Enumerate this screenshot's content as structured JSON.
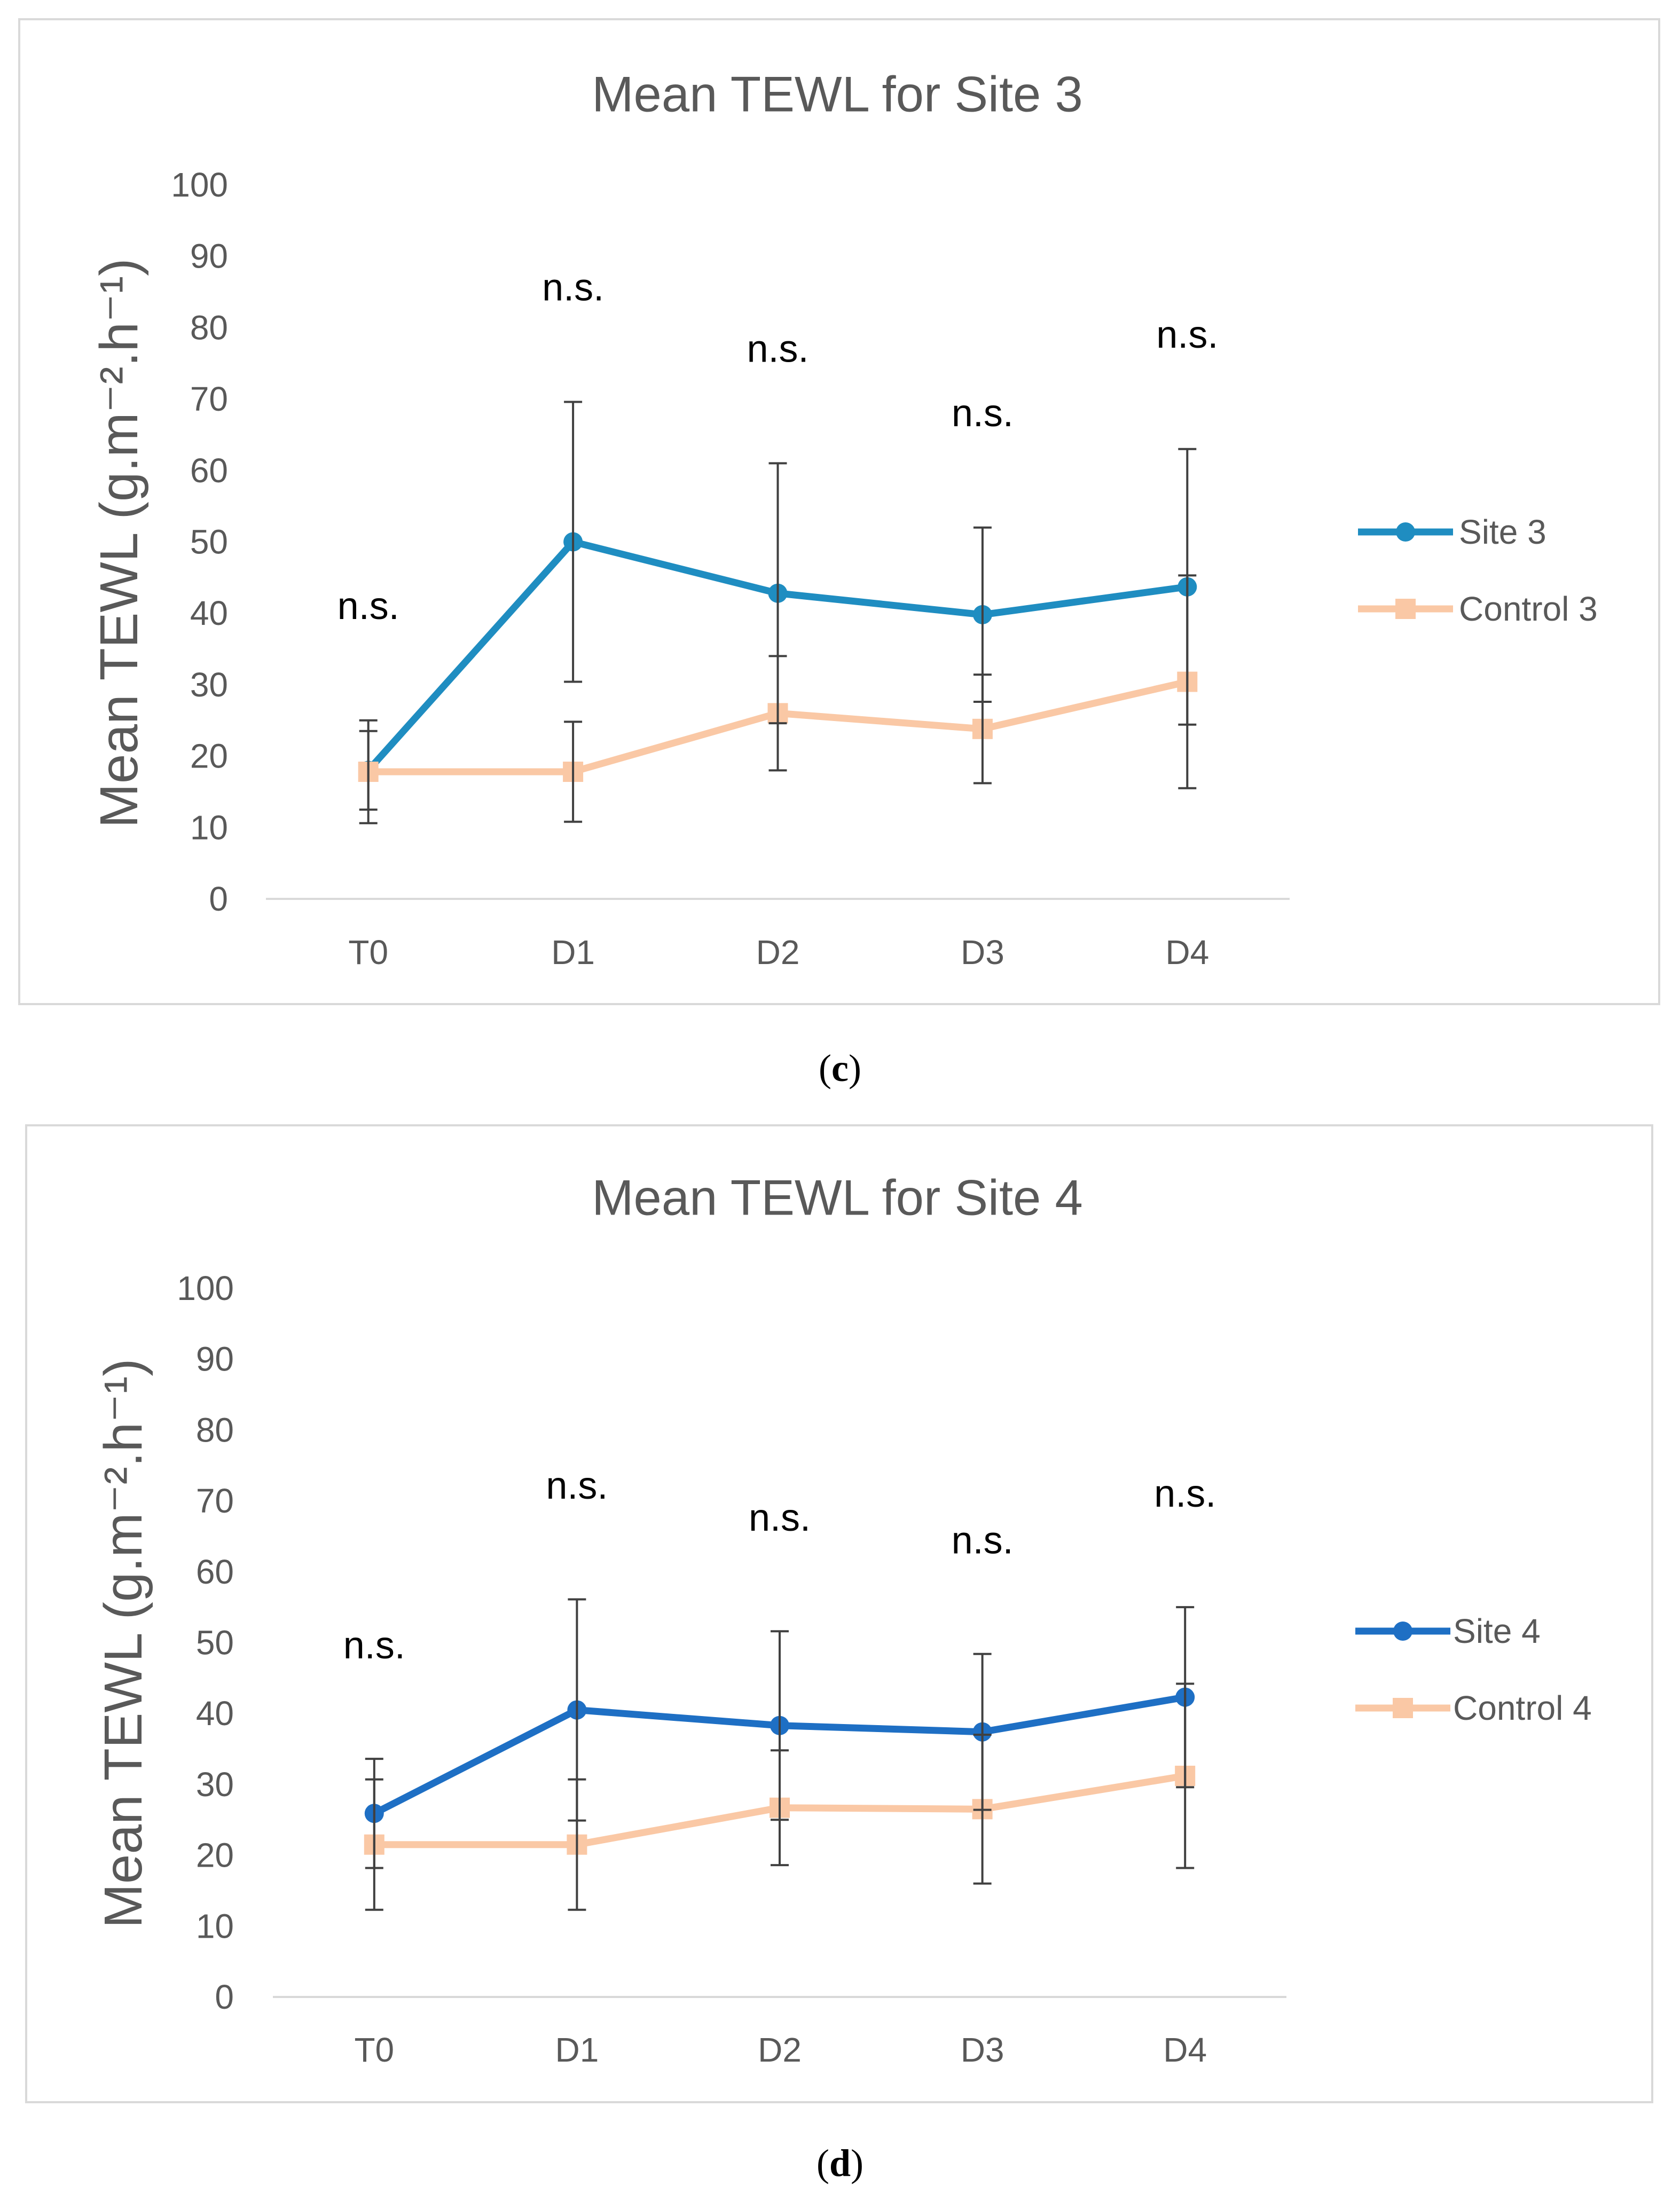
{
  "chart_data": [
    {
      "type": "line",
      "title": "Mean TEWL for Site 3",
      "ylabel": "Mean TEWL (g.m⁻².h⁻¹)",
      "ylim": [
        0,
        100
      ],
      "yticks": [
        0,
        10,
        20,
        30,
        40,
        50,
        60,
        70,
        80,
        90,
        100
      ],
      "categories": [
        "T0",
        "D1",
        "D2",
        "D3",
        "D4"
      ],
      "series": [
        {
          "name": "Site 3",
          "values": [
            18,
            50,
            42.8,
            39.8,
            43.7
          ],
          "error": [
            5.5,
            19.6,
            18.2,
            12.2,
            19.3
          ],
          "color": "#1f8dc1"
        },
        {
          "name": "Control 3",
          "values": [
            17.8,
            17.8,
            26,
            23.8,
            30.4
          ],
          "error": [
            7.2,
            7,
            8,
            7.6,
            14.9
          ],
          "color": "#fac8a5"
        }
      ],
      "annotations": [
        {
          "category": "T0",
          "text": "n.s."
        },
        {
          "category": "D1",
          "text": "n.s."
        },
        {
          "category": "D2",
          "text": "n.s."
        },
        {
          "category": "D3",
          "text": "n.s."
        },
        {
          "category": "D4",
          "text": "n.s."
        }
      ],
      "legend": "right",
      "grid": false,
      "error_bar_color": "#404040",
      "axis_color": "#d9d9d9"
    },
    {
      "type": "line",
      "title": "Mean TEWL for Site 4",
      "ylabel": "Mean TEWL (g.m⁻².h⁻¹)",
      "ylim": [
        0,
        100
      ],
      "yticks": [
        0,
        10,
        20,
        30,
        40,
        50,
        60,
        70,
        80,
        90,
        100
      ],
      "categories": [
        "T0",
        "D1",
        "D2",
        "D3",
        "D4"
      ],
      "series": [
        {
          "name": "Site 4",
          "values": [
            25.9,
            40.5,
            38.3,
            37.4,
            42.3
          ],
          "error": [
            7.7,
            15.6,
            13.3,
            11,
            12.7
          ],
          "color": "#1e6fc4"
        },
        {
          "name": "Control 4",
          "values": [
            21.5,
            21.5,
            26.7,
            26.5,
            31.2
          ],
          "error": [
            9.2,
            9.2,
            8.1,
            10.5,
            13
          ],
          "color": "#fac8a5"
        }
      ],
      "annotations": [
        {
          "category": "T0",
          "text": "n.s."
        },
        {
          "category": "D1",
          "text": "n.s."
        },
        {
          "category": "D2",
          "text": "n.s."
        },
        {
          "category": "D3",
          "text": "n.s."
        },
        {
          "category": "D4",
          "text": "n.s."
        }
      ],
      "legend": "right",
      "grid": false,
      "error_bar_color": "#404040",
      "axis_color": "#d9d9d9"
    }
  ],
  "captions": [
    {
      "prefix": "(",
      "letter": "c",
      "suffix": ")"
    },
    {
      "prefix": "(",
      "letter": "d",
      "suffix": ")"
    }
  ]
}
